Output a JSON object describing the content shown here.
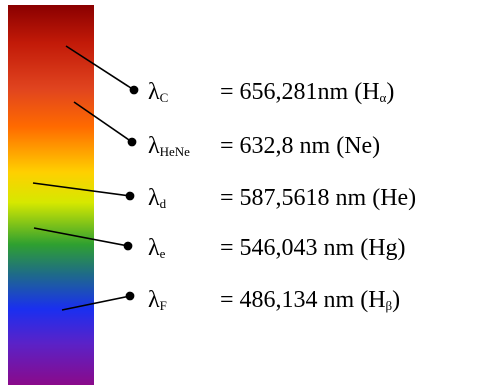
{
  "lines": [
    {
      "symbol": "λ",
      "subscript": "C",
      "value": "= 656,281nm (H",
      "value_sub": "α",
      "value_tail": ")"
    },
    {
      "symbol": "λ",
      "subscript": "HeNe",
      "value": "= 632,8 nm (Ne)",
      "value_sub": "",
      "value_tail": ""
    },
    {
      "symbol": "λ",
      "subscript": "d",
      "value": "= 587,5618 nm (He)",
      "value_sub": "",
      "value_tail": ""
    },
    {
      "symbol": "λ",
      "subscript": "e",
      "value": "= 546,043 nm (Hg)",
      "value_sub": "",
      "value_tail": ""
    },
    {
      "symbol": "λ",
      "subscript": "F",
      "value": "= 486,134 nm (H",
      "value_sub": "β",
      "value_tail": ")"
    }
  ]
}
